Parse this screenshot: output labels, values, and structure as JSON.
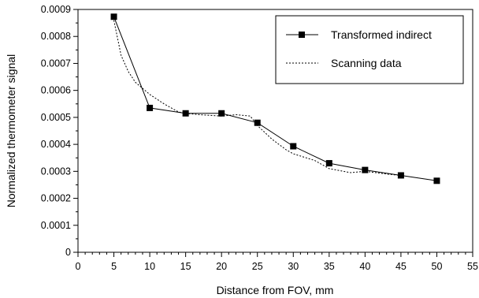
{
  "chart_data": {
    "type": "line",
    "title": "",
    "xlabel": "Distance from FOV, mm",
    "ylabel": "Normalized thermometer signal",
    "xlim": [
      0,
      55
    ],
    "ylim": [
      0,
      0.0009
    ],
    "x_ticks": [
      "0",
      "5",
      "10",
      "15",
      "20",
      "25",
      "30",
      "35",
      "40",
      "45",
      "50",
      "55"
    ],
    "y_ticks": [
      "0",
      "0.0001",
      "0.0002",
      "0.0003",
      "0.0004",
      "0.0005",
      "0.0006",
      "0.0007",
      "0.0008",
      "0.0009"
    ],
    "grid": false,
    "legend_position": "top-right",
    "series": [
      {
        "name": "Transformed indirect",
        "style": "solid-line-square-markers",
        "color": "#000000",
        "x": [
          5,
          10,
          15,
          20,
          25,
          30,
          35,
          40,
          45,
          50
        ],
        "y": [
          0.000873,
          0.000535,
          0.000515,
          0.000515,
          0.00048,
          0.000393,
          0.00033,
          0.000305,
          0.000285,
          0.000265
        ]
      },
      {
        "name": "Scanning data",
        "style": "dotted-line",
        "color": "#000000",
        "x": [
          5,
          6,
          7,
          8,
          10,
          12,
          14,
          15,
          17,
          20,
          22,
          24,
          25,
          27,
          29,
          30,
          33,
          35,
          38,
          40,
          43,
          45
        ],
        "y": [
          0.00086,
          0.00073,
          0.00067,
          0.00063,
          0.000585,
          0.00055,
          0.00052,
          0.000515,
          0.00051,
          0.000505,
          0.00051,
          0.000505,
          0.00047,
          0.00042,
          0.00038,
          0.000365,
          0.00034,
          0.00031,
          0.000295,
          0.0003,
          0.00029,
          0.000285
        ]
      }
    ]
  }
}
